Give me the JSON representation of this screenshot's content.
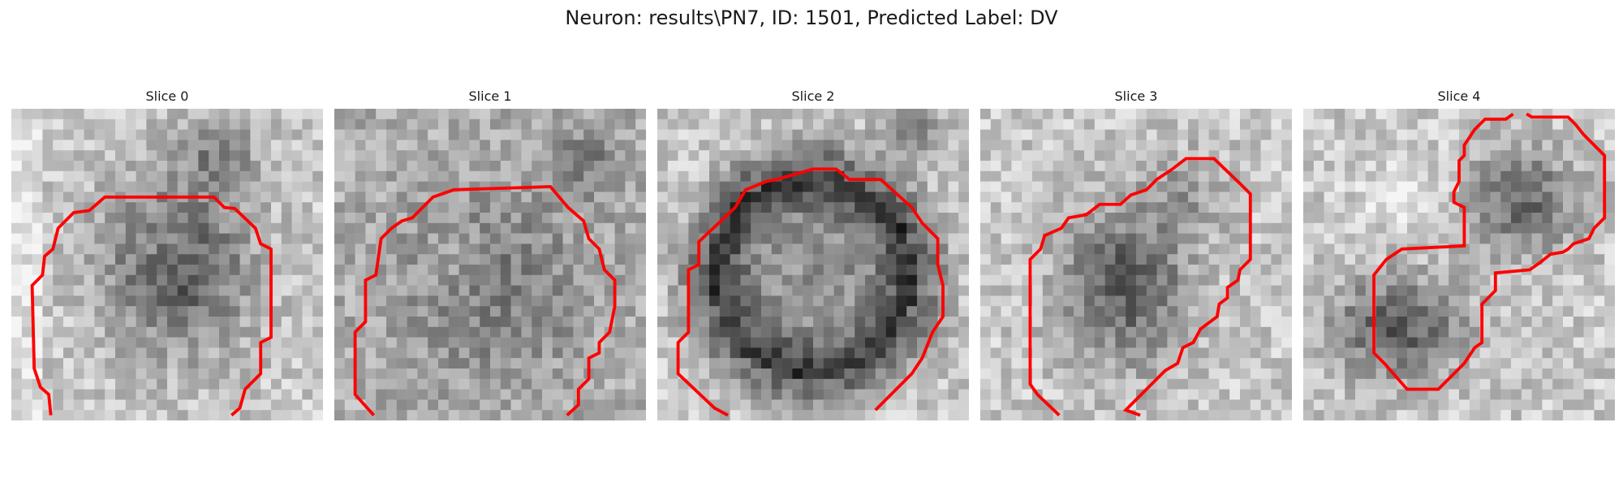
{
  "figure": {
    "title": "Neuron: results\\PN7, ID: 1501, Predicted Label: DV"
  },
  "slices": [
    {
      "label": "Slice 0",
      "contour_color": "#ff0000"
    },
    {
      "label": "Slice 1",
      "contour_color": "#ff0000"
    },
    {
      "label": "Slice 2",
      "contour_color": "#ff0000"
    },
    {
      "label": "Slice 3",
      "contour_color": "#ff0000"
    },
    {
      "label": "Slice 4",
      "contour_color": "#ff0000"
    }
  ]
}
